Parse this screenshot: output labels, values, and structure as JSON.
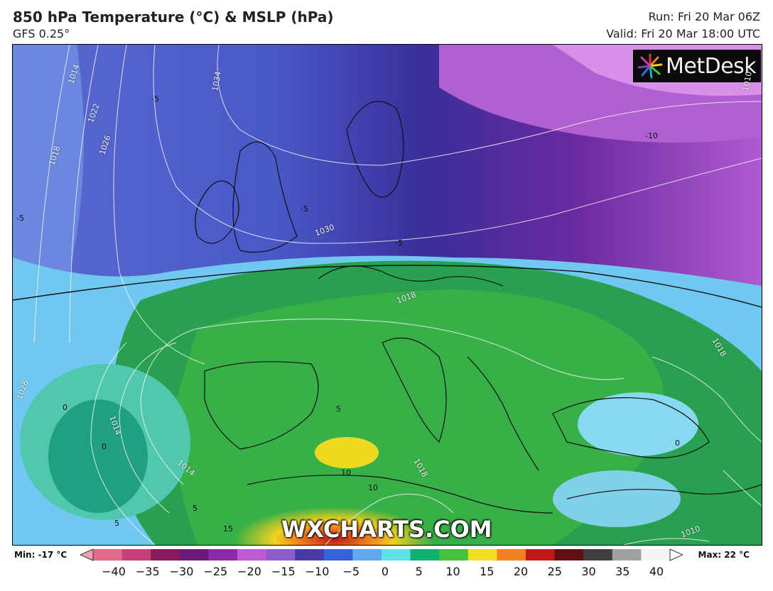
{
  "header": {
    "title": "850 hPa Temperature (°C) & MSLP (hPa)",
    "model": "GFS 0.25°",
    "run": "Run: Fri 20 Mar 06Z",
    "valid": "Valid: Fri 20 Mar 18:00 UTC"
  },
  "branding": {
    "logo_text": "MetDesk",
    "watermark": "WXCHARTS.COM"
  },
  "isobars": [
    {
      "text": "1014"
    },
    {
      "text": "1034"
    },
    {
      "text": "1022"
    },
    {
      "text": "1026"
    },
    {
      "text": "1018"
    },
    {
      "text": "1030"
    },
    {
      "text": "1018"
    },
    {
      "text": "1026"
    },
    {
      "text": "1014"
    },
    {
      "text": "1018"
    },
    {
      "text": "1010"
    },
    {
      "text": "1018"
    },
    {
      "text": "1014"
    },
    {
      "text": "1010"
    }
  ],
  "temp_labels": [
    {
      "text": "-5"
    },
    {
      "text": "-5"
    },
    {
      "text": "-5"
    },
    {
      "text": "-5"
    },
    {
      "text": "-10"
    },
    {
      "text": "5"
    },
    {
      "text": "5"
    },
    {
      "text": "10"
    },
    {
      "text": "10"
    },
    {
      "text": "15"
    },
    {
      "text": "0"
    },
    {
      "text": "0"
    },
    {
      "text": "5"
    },
    {
      "text": "0"
    }
  ],
  "legend": {
    "min_label": "Min: -17 °C",
    "max_label": "Max: 22 °C",
    "ticks": [
      "−40",
      "−35",
      "−30",
      "−25",
      "−20",
      "−15",
      "−10",
      "−5",
      "0",
      "5",
      "10",
      "15",
      "20",
      "25",
      "30",
      "35",
      "40"
    ],
    "colors": [
      "#e06a8a",
      "#c7407a",
      "#8a1a5e",
      "#6a1a78",
      "#8a2ca8",
      "#c05ad0",
      "#8c5cc8",
      "#4a3aa8",
      "#3860d8",
      "#60a8f0",
      "#60e0e8",
      "#10b070",
      "#48c040",
      "#f0e020",
      "#f08020",
      "#c01818",
      "#601010",
      "#404040",
      "#a0a0a0",
      "#f4f4f4"
    ]
  }
}
